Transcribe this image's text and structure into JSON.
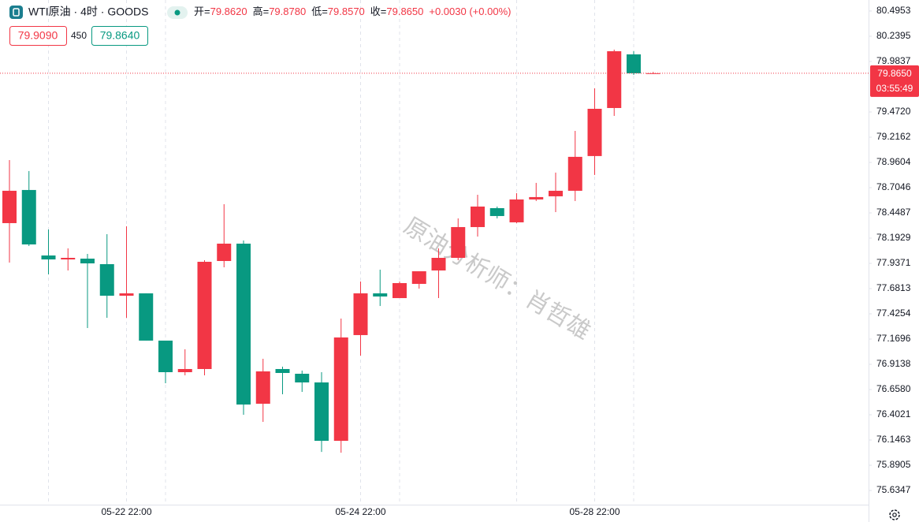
{
  "chart_data": {
    "type": "candlestick",
    "symbol": "WTI原油 · 4时 · GOODS",
    "legend": [
      {
        "name": "开=",
        "value": "79.8620"
      },
      {
        "name": "高=",
        "value": "79.8780"
      },
      {
        "name": "低=",
        "value": "79.8570"
      },
      {
        "name": "收=",
        "value": "79.8650"
      }
    ],
    "change": "+0.0030 (+0.00%)",
    "bid": "79.9090",
    "spread": "450",
    "ask": "79.8640",
    "last_price": {
      "value": 79.865,
      "label": "79.8650"
    },
    "countdown": "03:55:49",
    "watermark": "原油分析师：肖哲雄",
    "up_color": "#f23645",
    "down_color": "#089981",
    "categories": [
      null,
      null,
      null,
      null,
      null,
      null,
      "05-22 22:00",
      null,
      null,
      null,
      null,
      null,
      null,
      null,
      null,
      null,
      null,
      null,
      "05-24 22:00",
      null,
      null,
      null,
      null,
      null,
      null,
      null,
      null,
      null,
      null,
      null,
      "05-28 22:00",
      null,
      null,
      null
    ],
    "open": [
      78.345,
      78.681,
      78.017,
      77.977,
      77.985,
      77.929,
      77.609,
      77.633,
      77.154,
      76.834,
      76.866,
      77.961,
      78.137,
      76.514,
      76.866,
      76.818,
      76.73,
      76.138,
      77.21,
      77.633,
      77.585,
      77.729,
      77.865,
      77.993,
      78.305,
      78.497,
      78.353,
      78.585,
      78.617,
      78.673,
      79.025,
      79.512,
      80.056,
      79.862
    ],
    "high": [
      78.984,
      78.873,
      78.281,
      78.089,
      78.033,
      78.233,
      78.313,
      77.633,
      77.154,
      77.066,
      77.969,
      78.537,
      78.169,
      76.97,
      76.89,
      76.85,
      76.834,
      77.378,
      77.753,
      77.873,
      77.753,
      77.857,
      78.089,
      78.393,
      78.633,
      78.513,
      78.649,
      78.753,
      78.857,
      79.28,
      79.712,
      80.104,
      80.088,
      79.878
    ],
    "low": [
      77.945,
      78.113,
      77.825,
      77.865,
      77.282,
      77.385,
      77.385,
      77.154,
      76.722,
      76.802,
      76.802,
      77.897,
      76.402,
      76.33,
      76.61,
      76.634,
      76.026,
      76.018,
      77.002,
      77.505,
      77.585,
      77.681,
      77.585,
      77.969,
      78.209,
      78.393,
      78.345,
      78.569,
      78.457,
      78.569,
      78.833,
      79.432,
      79.848,
      79.857
    ],
    "close": [
      78.673,
      78.129,
      77.977,
      77.993,
      77.937,
      77.609,
      77.633,
      77.154,
      76.834,
      76.866,
      77.953,
      78.137,
      76.506,
      76.842,
      76.826,
      76.73,
      76.138,
      77.186,
      77.633,
      77.601,
      77.737,
      77.857,
      77.993,
      78.305,
      78.513,
      78.417,
      78.585,
      78.609,
      78.673,
      79.017,
      79.504,
      80.088,
      79.864,
      79.865
    ],
    "ylim": [
      75.491,
      80.607
    ],
    "yticks": [
      80.4953,
      80.2395,
      79.9837,
      {
        "value": 79.472,
        "label": "79.4720"
      },
      79.2162,
      78.9604,
      78.7046,
      78.4487,
      78.1929,
      77.9371,
      77.6813,
      77.4254,
      77.1696,
      76.9138,
      {
        "value": 76.658,
        "label": "76.6580"
      },
      76.4021,
      76.1463,
      75.8905,
      75.6347
    ]
  }
}
